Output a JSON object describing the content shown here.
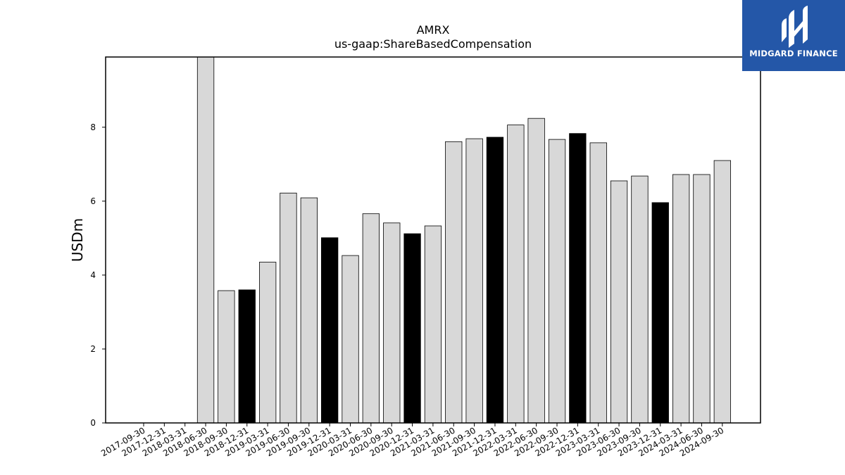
{
  "chart_data": {
    "type": "bar",
    "title": "AMRX",
    "subtitle": "us-gaap:ShareBasedCompensation",
    "xlabel": "",
    "ylabel": "USDm",
    "ylim": [
      0,
      9.9
    ],
    "yticks": [
      0,
      2,
      4,
      6,
      8
    ],
    "grid": false,
    "categories": [
      "2017-09-30",
      "2017-12-31",
      "2018-03-31",
      "2018-06-30",
      "2018-09-30",
      "2018-12-31",
      "2019-03-31",
      "2019-06-30",
      "2019-09-30",
      "2019-12-31",
      "2020-03-31",
      "2020-06-30",
      "2020-09-30",
      "2020-12-31",
      "2021-03-31",
      "2021-06-30",
      "2021-09-30",
      "2021-12-31",
      "2022-03-31",
      "2022-06-30",
      "2022-09-30",
      "2022-12-31",
      "2023-03-31",
      "2023-06-30",
      "2023-09-30",
      "2023-12-31",
      "2024-03-31",
      "2024-06-30",
      "2024-09-30"
    ],
    "values": [
      null,
      null,
      null,
      9.9,
      3.58,
      3.6,
      4.35,
      6.22,
      6.09,
      5.01,
      4.53,
      5.66,
      5.41,
      5.12,
      5.33,
      7.61,
      7.69,
      7.73,
      8.06,
      8.24,
      7.67,
      7.83,
      7.58,
      6.55,
      6.68,
      5.96,
      6.72,
      6.72,
      7.1
    ],
    "highlight": [
      false,
      false,
      false,
      false,
      false,
      true,
      false,
      false,
      false,
      true,
      false,
      false,
      false,
      true,
      false,
      false,
      false,
      true,
      false,
      false,
      false,
      true,
      false,
      false,
      false,
      true,
      false,
      false,
      false
    ],
    "colors": {
      "bar": "#d8d8d8",
      "highlight": "#000000",
      "edge": "#000000"
    }
  },
  "logo": {
    "text": "MIDGARD FINANCE",
    "color": "#2457a8"
  }
}
